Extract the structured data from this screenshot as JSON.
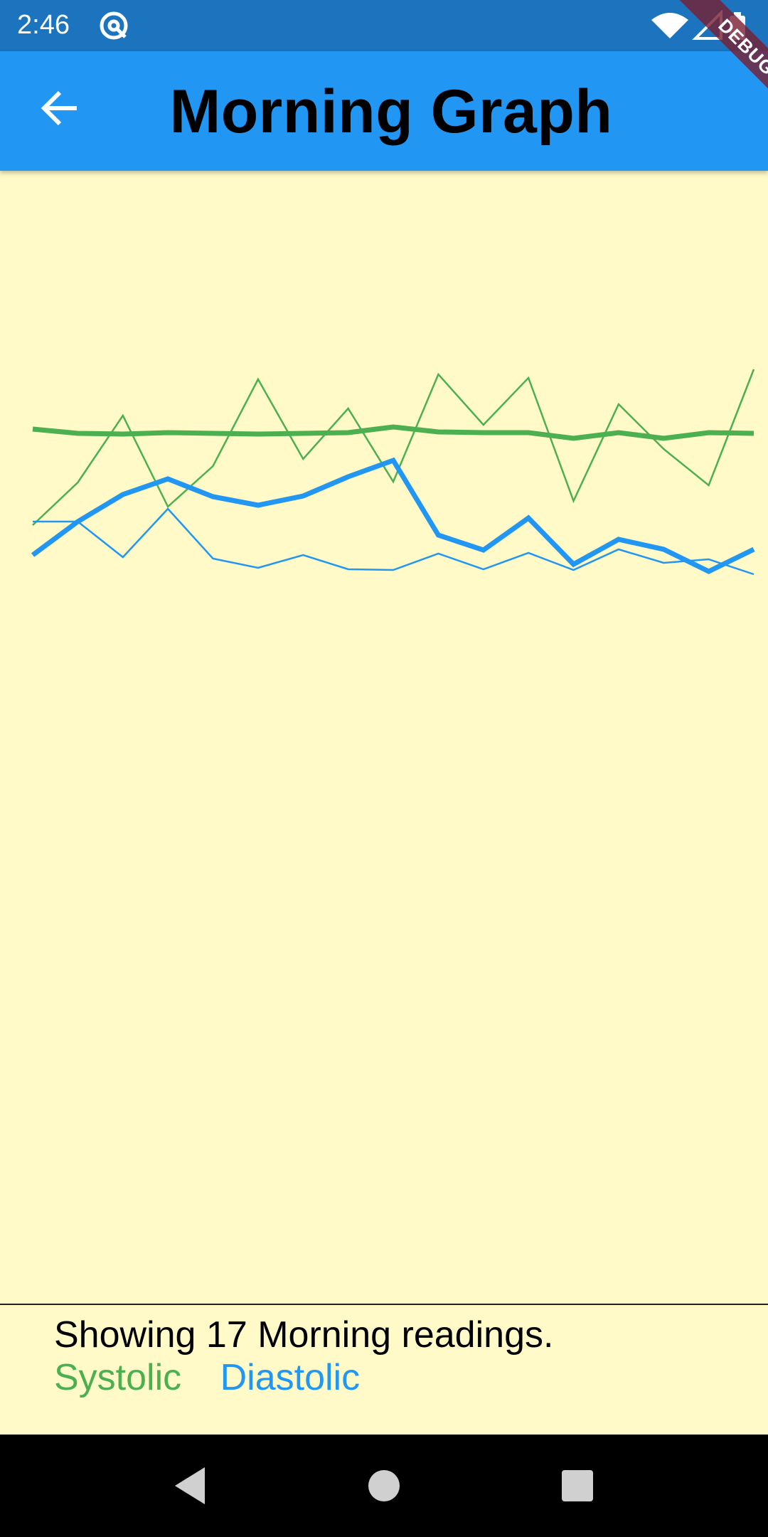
{
  "status_bar": {
    "time": "2:46",
    "icons": [
      "notification-icon",
      "wifi-icon",
      "signal-icon",
      "battery-icon"
    ]
  },
  "app_bar": {
    "title": "Morning Graph",
    "back_icon": "arrow-back-icon",
    "debug_banner": "DEBUG"
  },
  "summary": {
    "text": "Showing 17 Morning readings.",
    "legend_systolic": "Systolic",
    "legend_diastolic": "Diastolic"
  },
  "colors": {
    "systolic": "#4CAF50",
    "diastolic": "#2196F3",
    "app_bar": "#2196F3",
    "status_bar": "#1C73BE",
    "background": "#FFFAC8"
  },
  "chart_data": [
    {
      "type": "line",
      "x": [
        1,
        2,
        3,
        4,
        5,
        6,
        7,
        8,
        9,
        10,
        11,
        12,
        13,
        14,
        15,
        16,
        17
      ],
      "ylim": [
        0,
        1590
      ],
      "series": [
        {
          "name": "Systolic",
          "values": [
            1092,
            1152,
            1246,
            1118,
            1175,
            1297,
            1185,
            1256,
            1153,
            1304,
            1233,
            1299,
            1126,
            1262,
            1199,
            1148,
            1311
          ]
        },
        {
          "name": "Systolic",
          "values": [
            1227,
            1221,
            1220,
            1222,
            1221,
            1220,
            1221,
            1222,
            1230,
            1223,
            1222,
            1222,
            1214,
            1222,
            1214,
            1222,
            1221
          ]
        },
        {
          "name": "Diastolic",
          "values": [
            1097,
            1097,
            1047,
            1115,
            1045,
            1032,
            1050,
            1030,
            1029,
            1052,
            1030,
            1053,
            1029,
            1058,
            1039,
            1044,
            1023
          ]
        },
        {
          "name": "Diastolic",
          "values": [
            1050,
            1097,
            1135,
            1157,
            1132,
            1120,
            1133,
            1160,
            1183,
            1078,
            1057,
            1102,
            1037,
            1072,
            1058,
            1027,
            1058
          ]
        }
      ]
    }
  ]
}
